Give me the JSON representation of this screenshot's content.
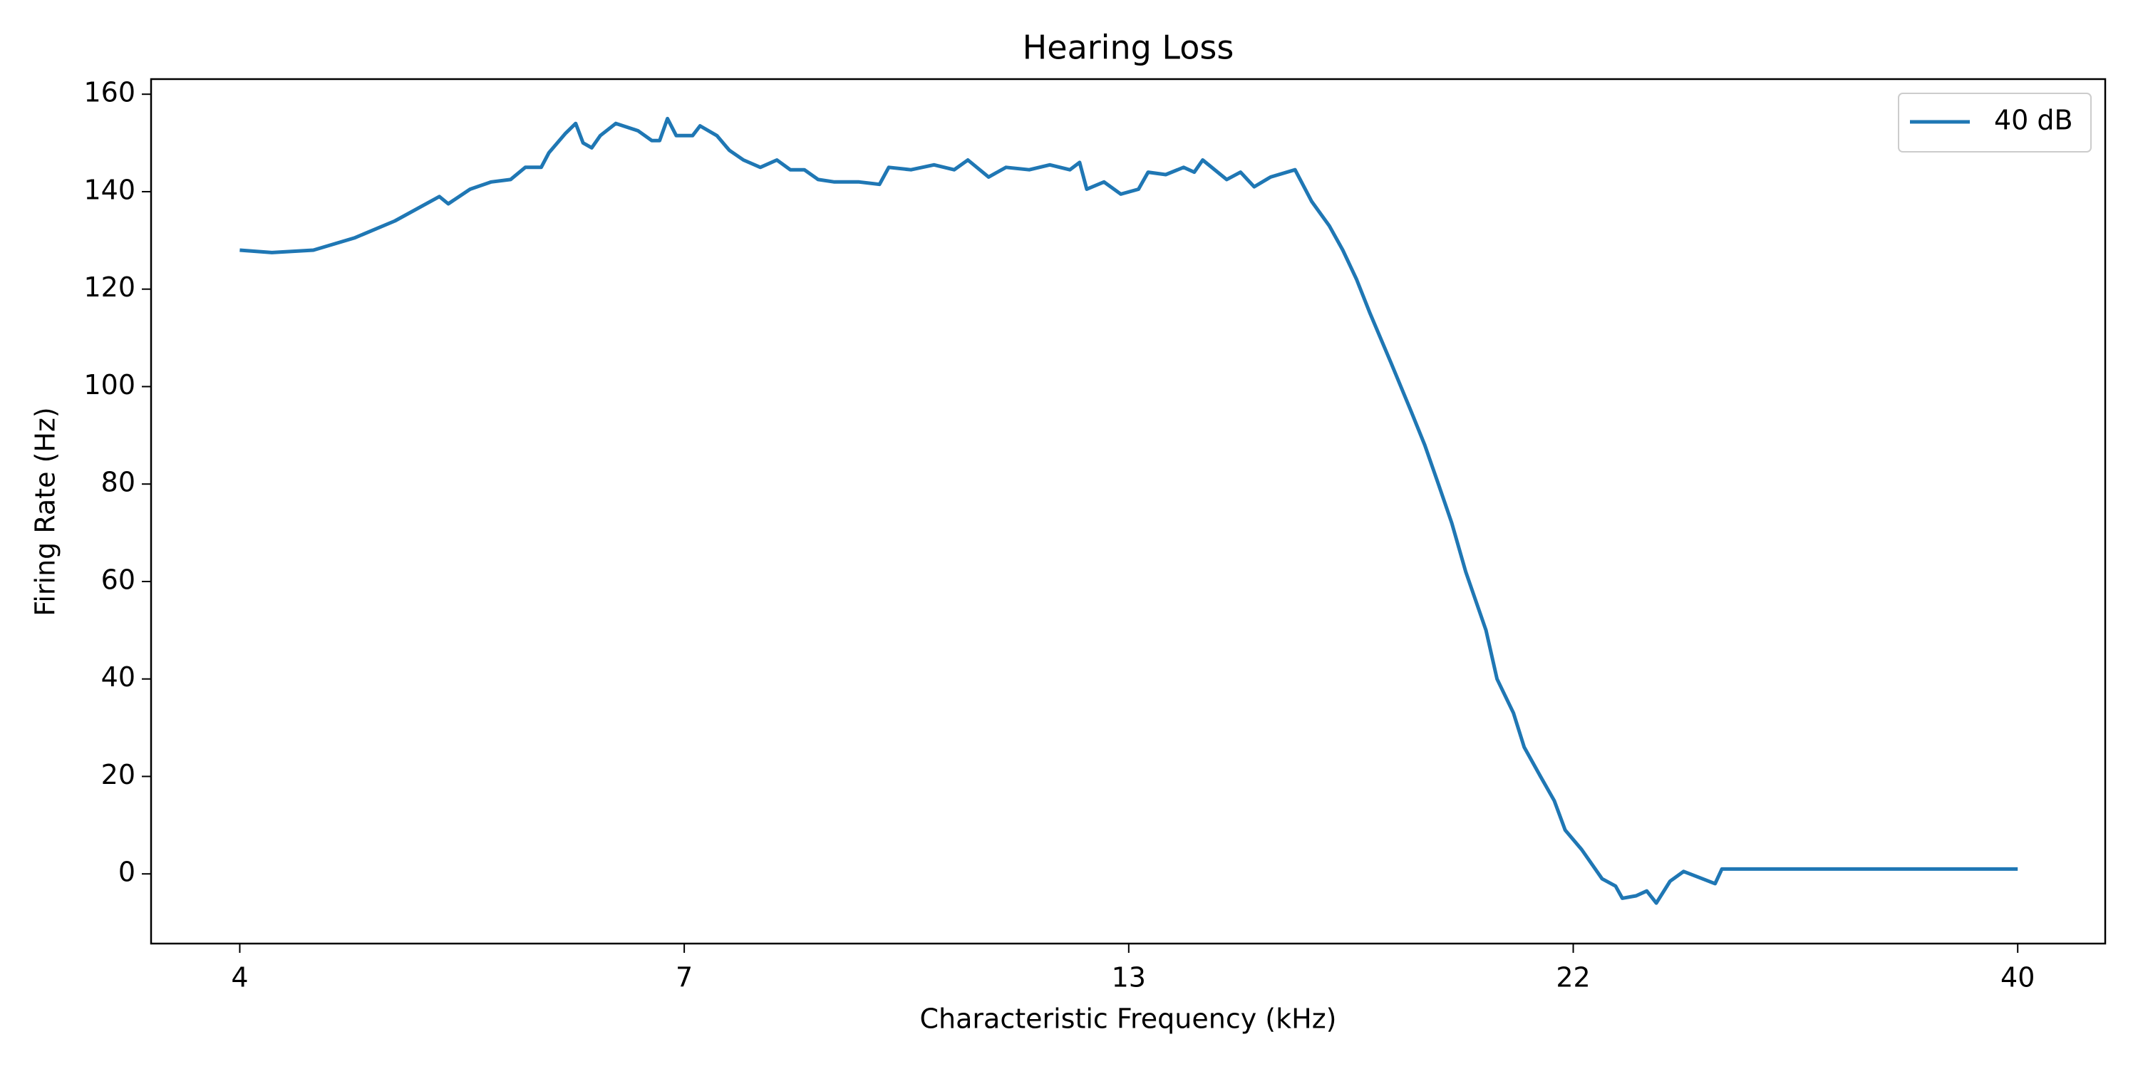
{
  "chart_data": {
    "type": "line",
    "title": "Hearing Loss",
    "xlabel": "Characteristic Frequency (kHz)",
    "ylabel": "Firing Rate (Hz)",
    "xscale": "log",
    "grid": false,
    "legend": "upper right",
    "x": [
      4.0,
      4.17,
      4.4,
      4.64,
      4.89,
      5.18,
      5.24,
      5.39,
      5.54,
      5.68,
      5.79,
      5.91,
      5.97,
      6.1,
      6.18,
      6.24,
      6.31,
      6.38,
      6.51,
      6.7,
      6.82,
      6.89,
      6.96,
      7.04,
      7.19,
      7.26,
      7.42,
      7.54,
      7.68,
      7.85,
      8.02,
      8.16,
      8.31,
      8.46,
      8.64,
      8.76,
      8.92,
      9.16,
      9.27,
      9.54,
      9.83,
      10.09,
      10.27,
      10.55,
      10.79,
      11.12,
      11.42,
      11.72,
      11.87,
      11.98,
      12.25,
      12.52,
      12.81,
      12.97,
      13.27,
      13.58,
      13.77,
      13.92,
      14.36,
      14.62,
      14.88,
      15.2,
      15.69,
      16.03,
      16.4,
      16.69,
      16.99,
      17.29,
      17.76,
      18.23,
      18.56,
      18.89,
      19.22,
      19.57,
      20.09,
      20.38,
      20.82,
      21.11,
      21.56,
      21.95,
      22.26,
      22.74,
      23.35,
      23.76,
      23.97,
      24.4,
      24.74,
      25.05,
      25.5,
      25.95,
      27.03,
      27.27,
      40.0
    ],
    "series": [
      {
        "name": "40 dB",
        "color": "#1f77b4",
        "values": [
          128,
          127.5,
          128,
          130.5,
          134,
          139,
          137.5,
          140.5,
          142,
          142.5,
          145,
          145,
          148,
          152,
          154,
          150,
          149,
          151.5,
          154,
          152.5,
          150.5,
          150.5,
          155,
          151.5,
          151.5,
          153.5,
          151.5,
          148.5,
          146.5,
          145,
          146.5,
          144.5,
          144.5,
          142.5,
          142,
          142,
          142,
          141.5,
          145,
          144.5,
          145.5,
          144.5,
          146.5,
          143,
          145,
          144.5,
          145.5,
          144.5,
          146,
          140.5,
          142,
          139.5,
          140.5,
          144,
          143.5,
          145,
          144,
          146.5,
          142.5,
          144,
          141,
          143,
          144.5,
          138,
          133,
          128,
          122,
          115,
          105,
          95,
          88,
          80,
          72,
          62,
          50,
          40,
          33,
          26,
          20,
          15,
          9,
          5,
          -1,
          -2.5,
          -5,
          -4.5,
          -3.5,
          -6,
          -1.5,
          0.5,
          -2,
          1,
          1
        ]
      }
    ],
    "xlim": [
      3.566,
      44.8
    ],
    "ylim": [
      -14.3,
      163.1
    ],
    "xticks": [
      4,
      {
        "value": 7.113,
        "label": "7"
      },
      {
        "value": 12.649,
        "label": "13"
      },
      {
        "value": 22.494,
        "label": "22"
      },
      40
    ],
    "yticks": [
      0,
      20,
      40,
      60,
      80,
      100,
      120,
      140,
      160
    ]
  }
}
